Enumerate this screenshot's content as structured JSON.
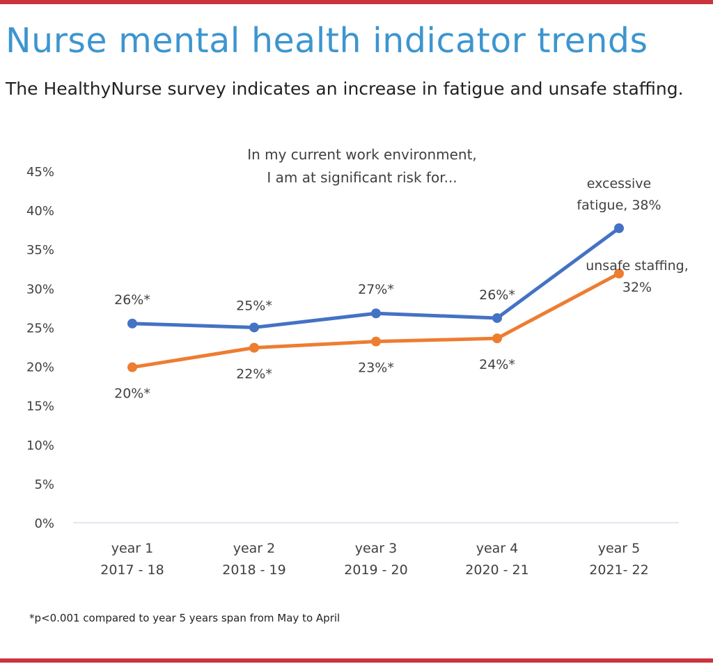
{
  "title": "Nurse mental health indicator trends",
  "subtitle": "The HealthyNurse survey indicates an increase in fatigue and unsafe staffing.",
  "footnote": "*p<0.001 compared to year 5 years span from May to April",
  "colors": {
    "accent_bar": "#c9343d",
    "title": "#3d95cf",
    "fatigue": "#4472c4",
    "staffing": "#ed7d31"
  },
  "chart_data": {
    "type": "line",
    "title": [
      "In my current work environment,",
      "I am at significant risk for..."
    ],
    "categories": [
      [
        "year 1",
        "2017 - 18"
      ],
      [
        "year 2",
        "2018 - 19"
      ],
      [
        "year 3",
        "2019 - 20"
      ],
      [
        "year 4",
        "2020 - 21"
      ],
      [
        "year 5",
        "2021- 22"
      ]
    ],
    "ylim": [
      0,
      45
    ],
    "yticks": [
      "0%",
      "5%",
      "10%",
      "15%",
      "20%",
      "25%",
      "30%",
      "35%",
      "40%",
      "45%"
    ],
    "grid": false,
    "series": [
      {
        "name": "excessive fatigue",
        "color": "#4472c4",
        "values": [
          25.5,
          25.0,
          26.8,
          26.2,
          37.7
        ],
        "labels": [
          "26%*",
          "25%*",
          "27%*",
          "26%*",
          [
            "excessive",
            "fatigue, 38%"
          ]
        ]
      },
      {
        "name": "unsafe staffing",
        "color": "#ed7d31",
        "values": [
          19.9,
          22.4,
          23.2,
          23.6,
          31.9
        ],
        "labels": [
          "20%*",
          "22%*",
          "23%*",
          "24%*",
          [
            "unsafe staffing,",
            "32%"
          ]
        ]
      }
    ]
  }
}
